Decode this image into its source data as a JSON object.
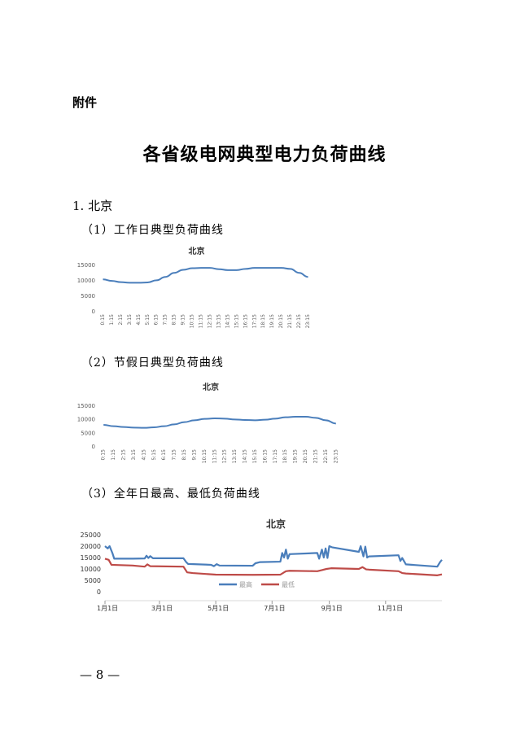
{
  "header": {
    "attachment_label": "附件"
  },
  "document": {
    "title": "各省级电网典型电力负荷曲线"
  },
  "section": {
    "label": "1. 北京"
  },
  "subsections": [
    {
      "label": "（1）工作日典型负荷曲线"
    },
    {
      "label": "（2）节假日典型负荷曲线"
    },
    {
      "label": "（3）全年日最高、最低负荷曲线"
    }
  ],
  "footer": {
    "page_number": "— 8 —"
  },
  "colors": {
    "high": "#4a7ebb",
    "low": "#be4b48",
    "axis_text": "#595959",
    "grid": "#d9d9d9"
  },
  "chart_data": [
    {
      "type": "line",
      "title": "北京",
      "categories": [
        "0:15",
        "1:15",
        "2:15",
        "3:15",
        "4:15",
        "5:15",
        "6:15",
        "7:15",
        "8:15",
        "9:15",
        "10:15",
        "11:15",
        "12:15",
        "13:15",
        "14:15",
        "15:15",
        "16:15",
        "17:15",
        "18:15",
        "19:15",
        "20:15",
        "21:15",
        "22:15",
        "23:15"
      ],
      "ylim": [
        0,
        15000
      ],
      "yticks": [
        0,
        5000,
        10000,
        15000
      ],
      "series": [
        {
          "values": [
            10200,
            9700,
            9300,
            9100,
            9100,
            9200,
            9900,
            11000,
            12300,
            13300,
            13800,
            13900,
            13900,
            13500,
            13200,
            13200,
            13600,
            13900,
            13900,
            13900,
            13900,
            13600,
            12300,
            11000
          ]
        }
      ]
    },
    {
      "type": "line",
      "title": "北京",
      "categories": [
        "0:15",
        "1:15",
        "2:15",
        "3:15",
        "4:15",
        "5:15",
        "6:15",
        "7:15",
        "8:15",
        "9:15",
        "10:15",
        "11:15",
        "12:15",
        "13:15",
        "14:15",
        "15:15",
        "16:15",
        "17:15",
        "18:15",
        "19:15",
        "20:15",
        "21:15",
        "22:15",
        "23:15"
      ],
      "ylim": [
        0,
        15000
      ],
      "yticks": [
        0,
        5000,
        10000,
        15000
      ],
      "series": [
        {
          "values": [
            7800,
            7300,
            7000,
            6800,
            6700,
            6900,
            7300,
            8000,
            8800,
            9500,
            10000,
            10200,
            10100,
            9800,
            9600,
            9500,
            9700,
            10100,
            10600,
            10800,
            10800,
            10400,
            9500,
            8300
          ]
        }
      ]
    },
    {
      "type": "line",
      "title": "北京",
      "x_ticks": [
        "1月1日",
        "3月1日",
        "5月1日",
        "7月1日",
        "9月1日",
        "11月1日"
      ],
      "x_tick_days": [
        0,
        59,
        120,
        181,
        243,
        304
      ],
      "xlim": [
        0,
        365
      ],
      "ylim": [
        0,
        25000
      ],
      "yticks": [
        0,
        5000,
        10000,
        15000,
        20000,
        25000
      ],
      "legend": "bottom",
      "series": [
        {
          "name": "最高",
          "color": "#4a7ebb",
          "points": [
            [
              0,
              20000
            ],
            [
              3,
              19000
            ],
            [
              5,
              20000
            ],
            [
              8,
              17000
            ],
            [
              10,
              14500
            ],
            [
              30,
              14500
            ],
            [
              43,
              14600
            ],
            [
              45,
              15800
            ],
            [
              47,
              14800
            ],
            [
              49,
              15600
            ],
            [
              52,
              14700
            ],
            [
              85,
              14700
            ],
            [
              88,
              13000
            ],
            [
              90,
              12200
            ],
            [
              115,
              11800
            ],
            [
              118,
              11200
            ],
            [
              121,
              12100
            ],
            [
              124,
              11500
            ],
            [
              160,
              11400
            ],
            [
              163,
              12500
            ],
            [
              168,
              13000
            ],
            [
              190,
              13200
            ],
            [
              192,
              17000
            ],
            [
              194,
              15000
            ],
            [
              196,
              18500
            ],
            [
              198,
              14500
            ],
            [
              200,
              16500
            ],
            [
              230,
              17000
            ],
            [
              232,
              14500
            ],
            [
              235,
              18500
            ],
            [
              237,
              15000
            ],
            [
              239,
              19000
            ],
            [
              241,
              14800
            ],
            [
              243,
              20000
            ],
            [
              246,
              19500
            ],
            [
              275,
              17500
            ],
            [
              277,
              20000
            ],
            [
              280,
              15500
            ],
            [
              282,
              19800
            ],
            [
              284,
              15000
            ],
            [
              286,
              15500
            ],
            [
              318,
              16000
            ],
            [
              320,
              13500
            ],
            [
              322,
              14800
            ],
            [
              326,
              12000
            ],
            [
              360,
              11000
            ],
            [
              363,
              13000
            ],
            [
              365,
              14000
            ]
          ]
        },
        {
          "name": "最低",
          "color": "#be4b48",
          "points": [
            [
              0,
              14500
            ],
            [
              4,
              14000
            ],
            [
              7,
              11800
            ],
            [
              30,
              11500
            ],
            [
              43,
              11000
            ],
            [
              46,
              12000
            ],
            [
              49,
              11200
            ],
            [
              85,
              11000
            ],
            [
              89,
              8500
            ],
            [
              95,
              8200
            ],
            [
              120,
              7500
            ],
            [
              160,
              7400
            ],
            [
              190,
              7500
            ],
            [
              196,
              9000
            ],
            [
              200,
              9200
            ],
            [
              230,
              9000
            ],
            [
              235,
              9500
            ],
            [
              240,
              10000
            ],
            [
              245,
              10300
            ],
            [
              275,
              10000
            ],
            [
              279,
              10800
            ],
            [
              283,
              9800
            ],
            [
              286,
              9700
            ],
            [
              318,
              9000
            ],
            [
              322,
              8200
            ],
            [
              326,
              8000
            ],
            [
              360,
              7200
            ],
            [
              365,
              7600
            ]
          ]
        }
      ]
    }
  ]
}
